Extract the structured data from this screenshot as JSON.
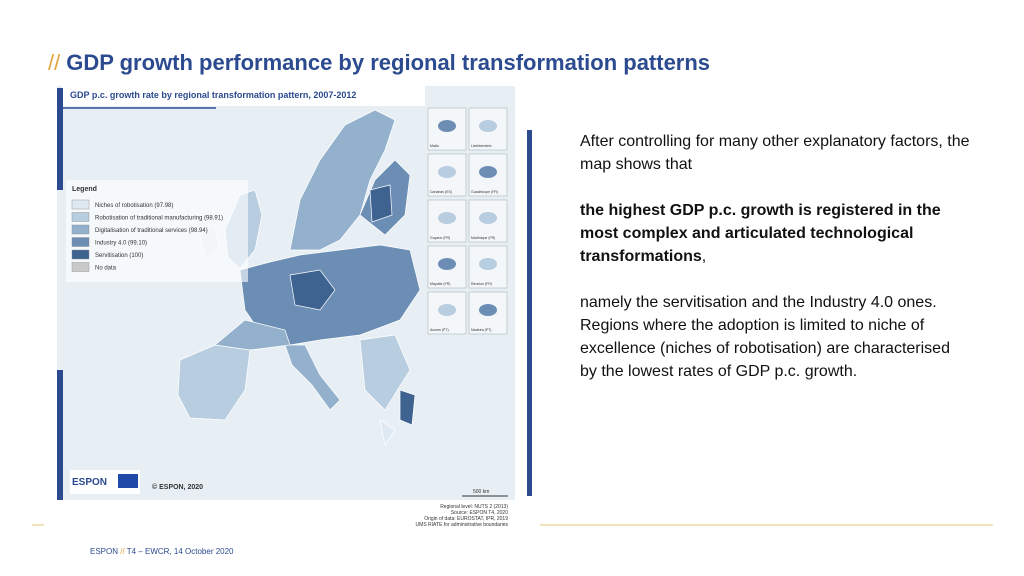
{
  "header": {
    "prefix": "//",
    "title": "GDP growth performance by regional transformation patterns"
  },
  "map": {
    "title": "GDP p.c. growth rate by regional transformation pattern, 2007-2012",
    "legend": {
      "title": "Legend",
      "items": [
        {
          "label": "Niches of robotisation (97.98)",
          "color": "#dfe9f1"
        },
        {
          "label": "Robotisation of traditional manufacturing (98.91)",
          "color": "#b9cde0"
        },
        {
          "label": "Digitalisation of traditional services (98.94)",
          "color": "#93b1cc"
        },
        {
          "label": "Industry 4.0 (99.10)",
          "color": "#6c8eb4"
        },
        {
          "label": "Servitisation (100)",
          "color": "#3e6390"
        },
        {
          "label": "No data",
          "color": "#c9c9c9"
        }
      ]
    },
    "insets": [
      "Malta",
      "Liechtenstein",
      "Canarias (ES)",
      "Guadeloupe (FR)",
      "Guyane (FR)",
      "Martinique (FR)",
      "Mayotte (FR)",
      "Reunion (FR)",
      "Acores (PT)",
      "Madeira (PT)"
    ],
    "logo": "ESPON",
    "copyright": "© ESPON, 2020",
    "scale": "500 km",
    "notes": [
      "Regional level: NUTS 2 (2013)",
      "Source: ESPON T4, 2020",
      "Origin of data: EUROSTAT, IPR, 2019",
      "UMS RIATE for administrative boundaries"
    ]
  },
  "text": {
    "intro": "After controlling for many other explanatory factors, the map shows that",
    "highlight": "the highest GDP p.c. growth is registered in the most complex and articulated technological transformations",
    "highlight_tail": ",",
    "body": "namely the servitisation and the Industry 4.0 ones. Regions where the adoption is limited to niche of excellence (niches of robotisation) are characterised by the lowest rates of GDP p.c. growth."
  },
  "footer": {
    "brand": "ESPON",
    "separator": "//",
    "text": "T4 – EWCR, 14 October 2020"
  }
}
